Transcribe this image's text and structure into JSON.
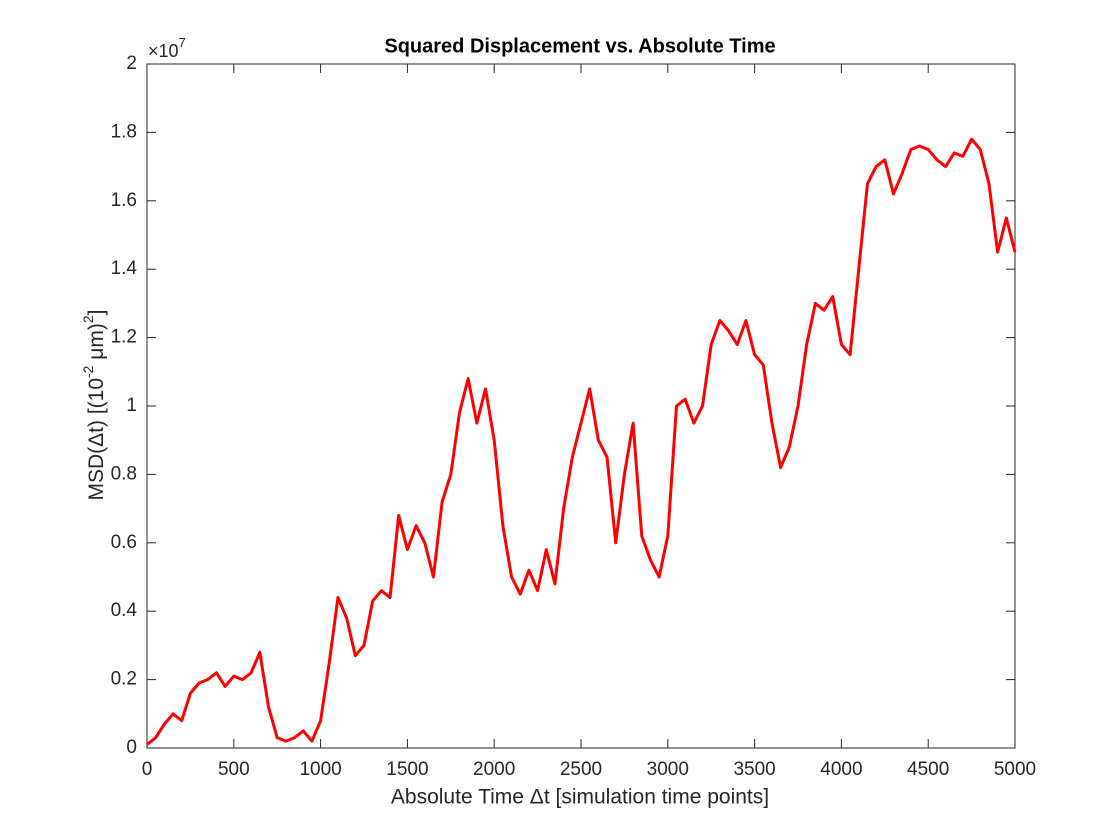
{
  "chart_data": {
    "type": "line",
    "title": "Squared Displacement vs. Absolute Time",
    "xlabel": "Absolute Time Δt [simulation time points]",
    "ylabel_parts": [
      "MSD(Δt) [(10",
      "-2",
      " μm)",
      "2",
      "]"
    ],
    "y_multiplier": {
      "base": "×10",
      "exponent": "7"
    },
    "x": [
      0,
      50,
      100,
      150,
      200,
      250,
      300,
      350,
      400,
      450,
      500,
      550,
      600,
      650,
      700,
      750,
      800,
      850,
      900,
      950,
      1000,
      1050,
      1100,
      1150,
      1200,
      1250,
      1300,
      1350,
      1400,
      1450,
      1500,
      1550,
      1600,
      1650,
      1700,
      1750,
      1800,
      1850,
      1900,
      1950,
      2000,
      2050,
      2100,
      2150,
      2200,
      2250,
      2300,
      2350,
      2400,
      2450,
      2500,
      2550,
      2600,
      2650,
      2700,
      2750,
      2800,
      2850,
      2900,
      2950,
      3000,
      3050,
      3100,
      3150,
      3200,
      3250,
      3300,
      3350,
      3400,
      3450,
      3500,
      3550,
      3600,
      3650,
      3700,
      3750,
      3800,
      3850,
      3900,
      3950,
      4000,
      4050,
      4100,
      4150,
      4200,
      4250,
      4300,
      4350,
      4400,
      4450,
      4500,
      4550,
      4600,
      4650,
      4700,
      4750,
      4800,
      4850,
      4900,
      4950,
      5000
    ],
    "series": [
      {
        "color": "#ff0000",
        "values": [
          0.01,
          0.03,
          0.07,
          0.1,
          0.08,
          0.16,
          0.19,
          0.2,
          0.22,
          0.18,
          0.21,
          0.2,
          0.22,
          0.28,
          0.12,
          0.03,
          0.02,
          0.03,
          0.05,
          0.02,
          0.08,
          0.25,
          0.44,
          0.38,
          0.27,
          0.3,
          0.43,
          0.46,
          0.44,
          0.68,
          0.58,
          0.65,
          0.6,
          0.5,
          0.72,
          0.8,
          0.98,
          1.08,
          0.95,
          1.05,
          0.9,
          0.65,
          0.5,
          0.45,
          0.52,
          0.46,
          0.58,
          0.48,
          0.7,
          0.85,
          0.95,
          1.05,
          0.9,
          0.85,
          0.6,
          0.8,
          0.95,
          0.62,
          0.55,
          0.5,
          0.62,
          1.0,
          1.02,
          0.95,
          1.0,
          1.18,
          1.25,
          1.22,
          1.18,
          1.25,
          1.15,
          1.12,
          0.95,
          0.82,
          0.88,
          1.0,
          1.18,
          1.3,
          1.28,
          1.32,
          1.18,
          1.15,
          1.4,
          1.65,
          1.7,
          1.72,
          1.62,
          1.68,
          1.75,
          1.76,
          1.75,
          1.72,
          1.7,
          1.74,
          1.73,
          1.78,
          1.75,
          1.65,
          1.45,
          1.55,
          1.45
        ]
      }
    ],
    "xlim": [
      0,
      5000
    ],
    "xticks": [
      0,
      500,
      1000,
      1500,
      2000,
      2500,
      3000,
      3500,
      4000,
      4500,
      5000
    ],
    "ylim": [
      0,
      2
    ],
    "yticks": [
      0,
      0.2,
      0.4,
      0.6,
      0.8,
      1,
      1.2,
      1.4,
      1.6,
      1.8,
      2
    ]
  }
}
